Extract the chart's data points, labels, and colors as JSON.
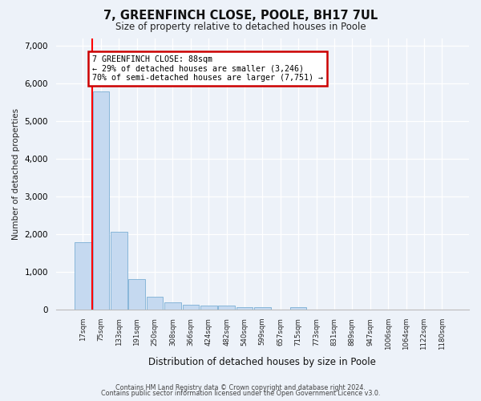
{
  "title": "7, GREENFINCH CLOSE, POOLE, BH17 7UL",
  "subtitle": "Size of property relative to detached houses in Poole",
  "xlabel": "Distribution of detached houses by size in Poole",
  "ylabel": "Number of detached properties",
  "bar_color": "#c5d9f0",
  "bar_edge_color": "#7bafd4",
  "categories": [
    "17sqm",
    "75sqm",
    "133sqm",
    "191sqm",
    "250sqm",
    "308sqm",
    "366sqm",
    "424sqm",
    "482sqm",
    "540sqm",
    "599sqm",
    "657sqm",
    "715sqm",
    "773sqm",
    "831sqm",
    "889sqm",
    "947sqm",
    "1006sqm",
    "1064sqm",
    "1122sqm",
    "1180sqm"
  ],
  "values": [
    1780,
    5780,
    2060,
    820,
    340,
    190,
    120,
    110,
    110,
    70,
    60,
    0,
    60,
    0,
    0,
    0,
    0,
    0,
    0,
    0,
    0
  ],
  "annotation_text": "7 GREENFINCH CLOSE: 88sqm\n← 29% of detached houses are smaller (3,246)\n70% of semi-detached houses are larger (7,751) →",
  "annotation_box_color": "#ffffff",
  "annotation_edge_color": "#cc0000",
  "red_line_x": 0.5,
  "ylim": [
    0,
    7200
  ],
  "yticks": [
    0,
    1000,
    2000,
    3000,
    4000,
    5000,
    6000,
    7000
  ],
  "footer_line1": "Contains HM Land Registry data © Crown copyright and database right 2024.",
  "footer_line2": "Contains public sector information licensed under the Open Government Licence v3.0.",
  "bg_color": "#edf2f9",
  "plot_bg_color": "#edf2f9"
}
